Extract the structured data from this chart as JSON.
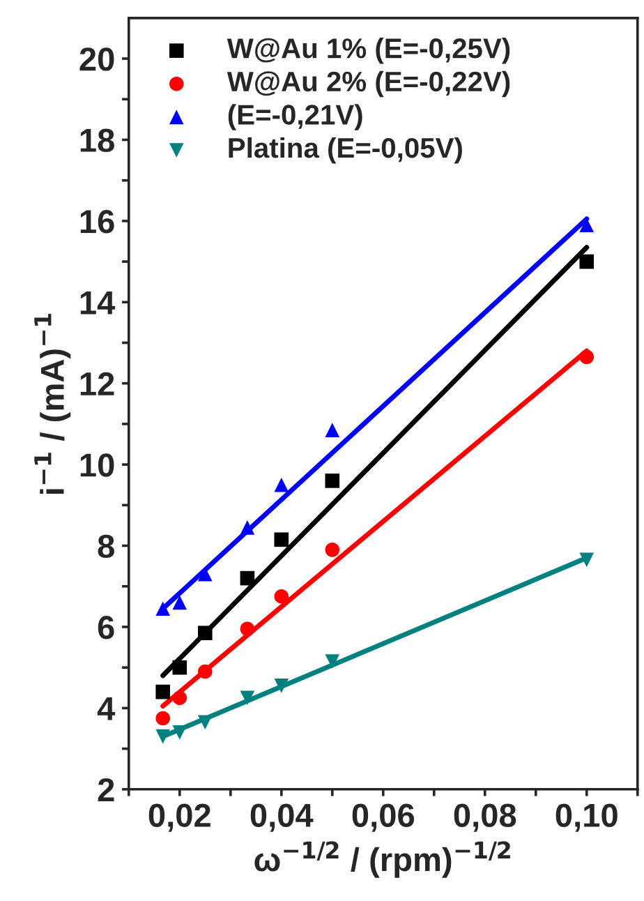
{
  "chart_data": {
    "type": "scatter",
    "xlabel": "ω$^{−1/2}$ / (rpm)$^{−1/2}$",
    "ylabel": "i$^{−1}$ / (mA)$^{−1}$",
    "xlim": [
      0.01,
      0.11
    ],
    "ylim": [
      2,
      21
    ],
    "xticks": [
      {
        "value": 0.01,
        "label": null
      },
      {
        "value": 0.02,
        "label": "0,02"
      },
      {
        "value": 0.03,
        "label": null
      },
      {
        "value": 0.04,
        "label": "0,04"
      },
      {
        "value": 0.05,
        "label": null
      },
      {
        "value": 0.06,
        "label": "0,06"
      },
      {
        "value": 0.07,
        "label": null
      },
      {
        "value": 0.08,
        "label": "0,08"
      },
      {
        "value": 0.09,
        "label": null
      },
      {
        "value": 0.1,
        "label": "0,10"
      },
      {
        "value": 0.11,
        "label": null
      }
    ],
    "yticks": [
      2,
      {
        "value": 3,
        "label": null
      },
      4,
      {
        "value": 5,
        "label": null
      },
      6,
      {
        "value": 7,
        "label": null
      },
      8,
      {
        "value": 9,
        "label": null
      },
      10,
      {
        "value": 11,
        "label": null
      },
      12,
      {
        "value": 13,
        "label": null
      },
      14,
      {
        "value": 15,
        "label": null
      },
      16,
      {
        "value": 17,
        "label": null
      },
      18,
      {
        "value": 19,
        "label": null
      },
      20
    ],
    "x": [
      0.0167,
      0.02,
      0.025,
      0.0333,
      0.04,
      0.05,
      0.1
    ],
    "legend": "top left",
    "grid": false,
    "series": [
      {
        "name": "W@Au 1% (E=-0,25V)",
        "color": "#000000",
        "marker": "square",
        "values": [
          4.4,
          5.0,
          5.85,
          7.2,
          8.15,
          9.6,
          15.0
        ]
      },
      {
        "name": "W@Au 2% (E=-0,22V)",
        "color": "#ff0000",
        "marker": "circle",
        "values": [
          3.75,
          4.25,
          4.9,
          5.95,
          6.75,
          7.9,
          12.65
        ]
      },
      {
        "name": "(E=-0,21V)",
        "color": "#0000ff",
        "marker": "triangle",
        "values": [
          6.45,
          6.6,
          7.3,
          8.45,
          9.5,
          10.85,
          15.9
        ]
      },
      {
        "name": "Platina (E=-0,05V)",
        "color": "#008080",
        "marker": "triangle_down",
        "values": [
          3.3,
          3.4,
          3.65,
          4.25,
          4.55,
          5.15,
          7.65
        ]
      },
      {
        "type": "line",
        "color": "#000000",
        "values": [
          4.8,
          null,
          null,
          null,
          null,
          null,
          15.35
        ]
      },
      {
        "type": "line",
        "color": "#ff0000",
        "values": [
          4.05,
          null,
          null,
          null,
          null,
          null,
          12.8
        ]
      },
      {
        "type": "line",
        "color": "#0000ff",
        "values": [
          6.45,
          null,
          null,
          null,
          null,
          null,
          16.05
        ]
      },
      {
        "type": "line",
        "color": "#008080",
        "values": [
          3.3,
          null,
          null,
          null,
          null,
          null,
          7.7
        ]
      }
    ]
  }
}
